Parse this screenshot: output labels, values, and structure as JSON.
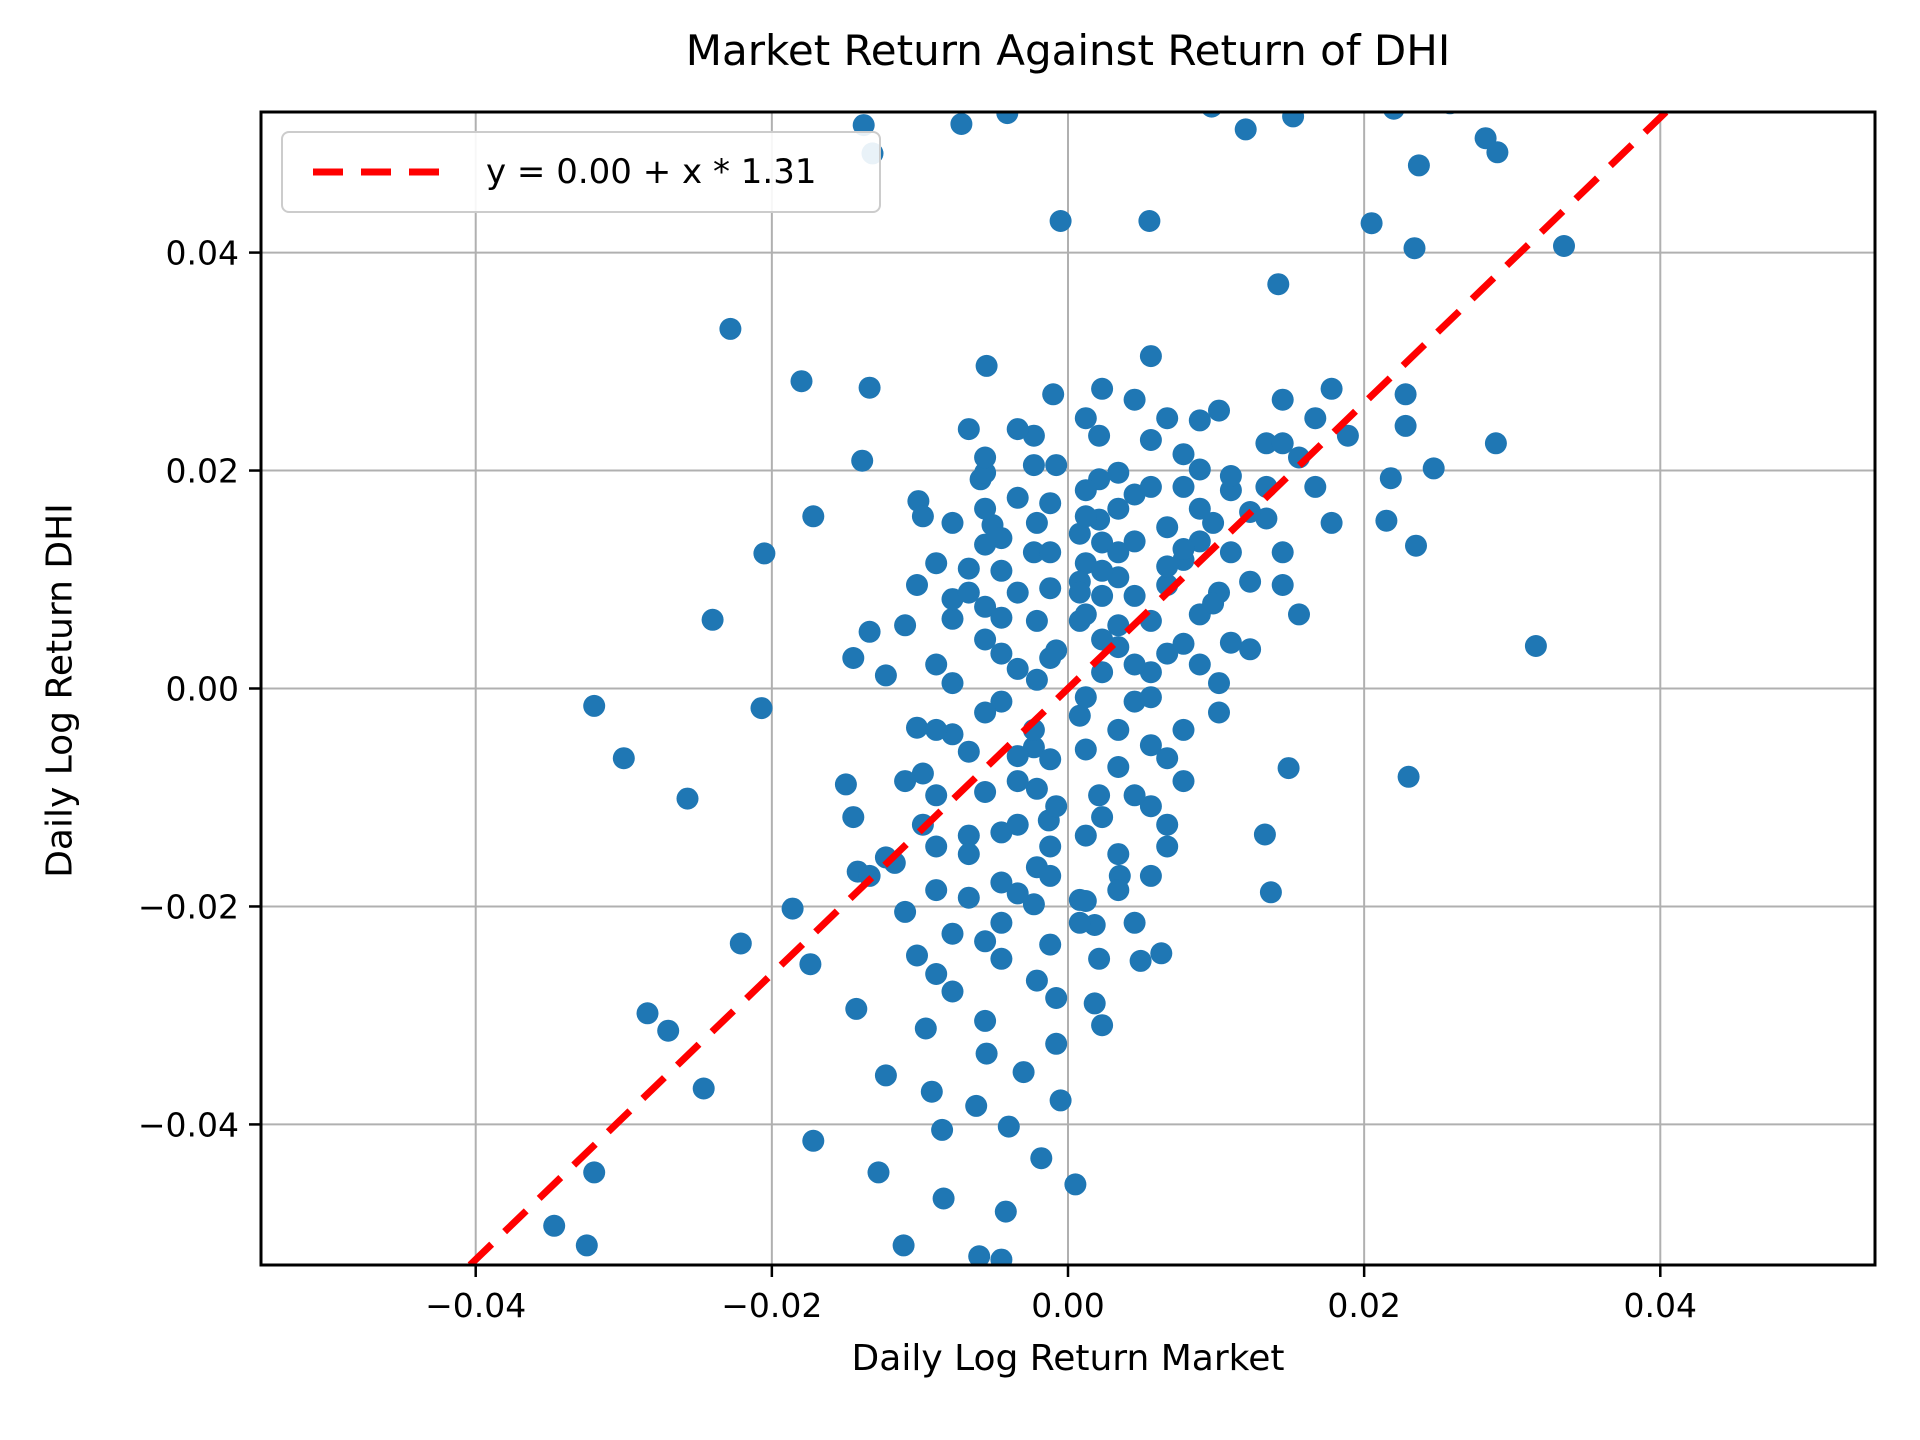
{
  "figure": {
    "background": "#ffffff"
  },
  "chart_data": {
    "type": "scatter",
    "title": "Market Return Against Return of DHI",
    "xlabel": "Daily Log Return Market",
    "ylabel": "Daily Log Return DHI",
    "xlim": [
      -0.0545,
      0.0545
    ],
    "ylim": [
      -0.0529,
      0.0529
    ],
    "xticks": [
      -0.04,
      -0.02,
      0.0,
      0.02,
      0.04
    ],
    "yticks": [
      0.04,
      0.02,
      0.0,
      -0.02,
      -0.04
    ],
    "grid": true,
    "grid_color": "#b0b0b0",
    "spine_color": "#000000",
    "marker": {
      "color": "#1f77b4",
      "radius_px": 11
    },
    "fit_line": {
      "slope": 1.31,
      "intercept": 0.0,
      "color": "#ff0000",
      "style": "dashed"
    },
    "legend": {
      "label": "y = 0.00 + x * 1.31",
      "position": "upper left"
    },
    "points": [
      [
        -0.018,
        0.0545
      ],
      [
        -0.0138,
        0.0517
      ],
      [
        -0.0132,
        0.0491
      ],
      [
        -0.0072,
        0.0518
      ],
      [
        -0.0041,
        0.0528
      ],
      [
        0.0042,
        0.0549
      ],
      [
        0.0065,
        0.0541
      ],
      [
        0.0097,
        0.0534
      ],
      [
        0.012,
        0.0513
      ],
      [
        0.022,
        0.0532
      ],
      [
        0.0258,
        0.0537
      ],
      [
        0.0282,
        0.0505
      ],
      [
        0.029,
        0.0492
      ],
      [
        0.0237,
        0.048
      ],
      [
        0.0055,
        0.0429
      ],
      [
        -0.0005,
        0.0429
      ],
      [
        0.0205,
        0.0427
      ],
      [
        0.0234,
        0.0404
      ],
      [
        0.0142,
        0.0371
      ],
      [
        -0.0228,
        0.033
      ],
      [
        0.0152,
        0.0525
      ],
      [
        0.0335,
        0.0406
      ],
      [
        -0.018,
        0.0282
      ],
      [
        -0.0134,
        0.0276
      ],
      [
        -0.0055,
        0.0296
      ],
      [
        -0.001,
        0.027
      ],
      [
        -0.0139,
        0.0209
      ],
      [
        -0.0059,
        0.0192
      ],
      [
        -0.0101,
        0.0172
      ],
      [
        -0.0172,
        0.0158
      ],
      [
        -0.0051,
        0.015
      ],
      [
        -0.024,
        0.0063
      ],
      [
        -0.0205,
        0.0124
      ],
      [
        -0.032,
        -0.0016
      ],
      [
        -0.03,
        -0.0064
      ],
      [
        -0.0257,
        -0.0101
      ],
      [
        -0.015,
        -0.0088
      ],
      [
        -0.0207,
        -0.0018
      ],
      [
        -0.0221,
        -0.0234
      ],
      [
        -0.0284,
        -0.0298
      ],
      [
        -0.027,
        -0.0314
      ],
      [
        -0.032,
        -0.0444
      ],
      [
        -0.0246,
        -0.0367
      ],
      [
        -0.0347,
        -0.0493
      ],
      [
        -0.0325,
        -0.0511
      ],
      [
        -0.0117,
        -0.016
      ],
      [
        -0.0142,
        -0.0168
      ],
      [
        -0.0186,
        -0.0202
      ],
      [
        -0.0174,
        -0.0253
      ],
      [
        -0.0096,
        -0.0312
      ],
      [
        -0.0143,
        -0.0294
      ],
      [
        -0.0008,
        -0.0326
      ],
      [
        -0.0055,
        -0.0335
      ],
      [
        -0.0111,
        -0.0511
      ],
      [
        -0.0084,
        -0.0468
      ],
      [
        -0.0128,
        -0.0444
      ],
      [
        -0.0172,
        -0.0415
      ],
      [
        -0.006,
        -0.0521
      ],
      [
        -0.0045,
        -0.0524
      ],
      [
        0.0005,
        -0.0455
      ],
      [
        -0.0018,
        -0.0431
      ],
      [
        -0.004,
        -0.0402
      ],
      [
        -0.0062,
        -0.0383
      ],
      [
        -0.0092,
        -0.037
      ],
      [
        -0.0123,
        -0.0355
      ],
      [
        -0.003,
        -0.0352
      ],
      [
        -0.0005,
        -0.0378
      ],
      [
        -0.0085,
        -0.0405
      ],
      [
        -0.0042,
        -0.048
      ],
      [
        0.0316,
        0.0039
      ],
      [
        0.023,
        -0.0081
      ],
      [
        0.0289,
        0.0225
      ],
      [
        0.0247,
        0.0202
      ],
      [
        0.0228,
        0.027
      ],
      [
        0.0228,
        0.0241
      ],
      [
        0.0218,
        0.0193
      ],
      [
        0.0235,
        0.0131
      ],
      [
        0.0215,
        0.0154
      ],
      [
        0.0149,
        -0.0073
      ],
      [
        0.0008,
        -0.0194
      ],
      [
        0.0018,
        -0.0217
      ],
      [
        0.0035,
        -0.0172
      ],
      [
        0.0049,
        -0.025
      ],
      [
        0.0018,
        -0.0289
      ],
      [
        0.0023,
        -0.0309
      ],
      [
        0.0137,
        -0.0187
      ],
      [
        0.0133,
        -0.0134
      ],
      [
        0.0063,
        -0.0243
      ],
      [
        -0.0021,
        0.0008
      ],
      [
        0.0034,
        0.0102
      ],
      [
        -0.0089,
        -0.0145
      ],
      [
        0.0012,
        -0.0056
      ],
      [
        0.0067,
        0.0148
      ],
      [
        -0.0045,
        0.0032
      ],
      [
        0.0102,
        0.0088
      ],
      [
        -0.0013,
        -0.0121
      ],
      [
        0.0056,
        0.0015
      ],
      [
        -0.0078,
        0.0064
      ],
      [
        0.0023,
        0.0134
      ],
      [
        -0.0102,
        -0.0036
      ],
      [
        0.0045,
        -0.0012
      ],
      [
        -0.0034,
        -0.0188
      ],
      [
        0.0089,
        0.0201
      ],
      [
        -0.0056,
        -0.0095
      ],
      [
        0.0008,
        0.0062
      ],
      [
        -0.0067,
        0.011
      ],
      [
        0.0134,
        0.0156
      ],
      [
        -0.0023,
        -0.0054
      ],
      [
        0.0078,
        0.0041
      ],
      [
        -0.0012,
        0.017
      ],
      [
        0.0056,
        0.0228
      ],
      [
        -0.0145,
        -0.0118
      ],
      [
        0.0021,
        -0.0098
      ],
      [
        0.011,
        0.0182
      ],
      [
        -0.0089,
        0.0022
      ],
      [
        0.0034,
        -0.0152
      ],
      [
        -0.0056,
        -0.0232
      ],
      [
        0.0145,
        0.0095
      ],
      [
        -0.0034,
        0.0088
      ],
      [
        0.0067,
        -0.0064
      ],
      [
        -0.011,
        -0.0205
      ],
      [
        0.0012,
        0.0115
      ],
      [
        0.0089,
        0.0246
      ],
      [
        -0.0078,
        -0.0042
      ],
      [
        0.0045,
        0.0178
      ],
      [
        -0.0021,
        -0.0164
      ],
      [
        0.0123,
        0.0036
      ],
      [
        -0.0045,
        0.0138
      ],
      [
        0.0008,
        -0.0025
      ],
      [
        -0.0134,
        0.0052
      ],
      [
        0.0078,
        0.0118
      ],
      [
        -0.0008,
        -0.0284
      ],
      [
        0.0034,
        0.0058
      ],
      [
        -0.0067,
        -0.0135
      ],
      [
        0.0156,
        0.0212
      ],
      [
        -0.0045,
        -0.0012
      ],
      [
        0.0021,
        0.0192
      ],
      [
        -0.0098,
        -0.0078
      ],
      [
        0.0056,
        -0.0108
      ],
      [
        -0.0023,
        0.0232
      ],
      [
        0.0102,
        0.0005
      ],
      [
        -0.0056,
        0.0075
      ],
      [
        0.0012,
        -0.0195
      ],
      [
        0.0145,
        0.0265
      ],
      [
        -0.0089,
        -0.0262
      ],
      [
        0.0067,
        0.0095
      ],
      [
        -0.0012,
        0.0028
      ],
      [
        0.0034,
        -0.0072
      ],
      [
        -0.0078,
        0.0152
      ],
      [
        0.0023,
        0.0085
      ],
      [
        -0.0045,
        -0.0215
      ],
      [
        0.011,
        0.0125
      ],
      [
        -0.0021,
        -0.0092
      ],
      [
        0.0056,
        0.0305
      ],
      [
        -0.0123,
        -0.0155
      ],
      [
        0.0008,
        0.0142
      ],
      [
        0.0078,
        -0.0038
      ],
      [
        -0.0034,
        -0.0125
      ],
      [
        0.0089,
        0.0068
      ],
      [
        -0.0056,
        0.0198
      ],
      [
        0.0021,
        -0.0248
      ],
      [
        -0.0102,
        0.0095
      ],
      [
        0.0045,
        0.0022
      ],
      [
        -0.0012,
        -0.0172
      ],
      [
        0.0134,
        0.0185
      ],
      [
        -0.0067,
        -0.0058
      ],
      [
        0.0012,
        0.0248
      ],
      [
        -0.0089,
        -0.0185
      ],
      [
        0.0034,
        0.0165
      ],
      [
        -0.0023,
        -0.0038
      ],
      [
        0.0067,
        -0.0125
      ],
      [
        -0.0145,
        0.0028
      ],
      [
        0.0008,
        0.0098
      ],
      [
        0.0098,
        0.0152
      ],
      [
        -0.0056,
        -0.0305
      ],
      [
        0.0023,
        0.0045
      ],
      [
        -0.0078,
        0.0082
      ],
      [
        0.0056,
        -0.0172
      ],
      [
        -0.0008,
        0.0205
      ],
      [
        0.0123,
        0.0098
      ],
      [
        -0.0034,
        0.0018
      ],
      [
        0.0045,
        -0.0215
      ],
      [
        -0.0067,
        0.0238
      ],
      [
        0.0012,
        -0.0008
      ],
      [
        -0.011,
        0.0058
      ],
      [
        0.0078,
        0.0215
      ],
      [
        -0.0021,
        -0.0268
      ],
      [
        0.0034,
        0.0125
      ],
      [
        0.0067,
        0.0032
      ],
      [
        -0.0045,
        0.0108
      ],
      [
        0.0156,
        0.0068
      ],
      [
        -0.0012,
        -0.0145
      ],
      [
        0.0023,
        0.0275
      ],
      [
        -0.0089,
        -0.0098
      ],
      [
        0.0045,
        0.0135
      ],
      [
        -0.0034,
        -0.0062
      ],
      [
        0.0102,
        -0.0022
      ],
      [
        -0.0056,
        0.0165
      ],
      [
        0.0012,
        0.0068
      ],
      [
        -0.0078,
        -0.0225
      ],
      [
        0.0089,
        0.0135
      ],
      [
        -0.0023,
        0.0125
      ],
      [
        0.0034,
        -0.0038
      ],
      [
        -0.0123,
        0.0012
      ],
      [
        0.0056,
        0.0185
      ],
      [
        -0.0045,
        -0.0178
      ],
      [
        0.0145,
        0.0125
      ],
      [
        -0.0008,
        0.0035
      ],
      [
        0.0078,
        -0.0085
      ],
      [
        -0.0056,
        0.0045
      ],
      [
        0.0021,
        0.0155
      ],
      [
        -0.0098,
        -0.0125
      ],
      [
        0.0067,
        0.0248
      ],
      [
        -0.0012,
        0.0092
      ],
      [
        0.011,
        0.0042
      ],
      [
        -0.0067,
        -0.0192
      ],
      [
        0.0023,
        -0.0118
      ],
      [
        -0.0034,
        0.0175
      ],
      [
        0.0045,
        0.0085
      ],
      [
        -0.0089,
        0.0115
      ],
      [
        0.0008,
        -0.0215
      ],
      [
        0.0134,
        0.0225
      ],
      [
        -0.0021,
        0.0152
      ],
      [
        0.0056,
        -0.0052
      ],
      [
        -0.011,
        -0.0085
      ],
      [
        0.0034,
        0.0198
      ],
      [
        -0.0045,
        -0.0248
      ],
      [
        0.0089,
        0.0165
      ],
      [
        -0.0012,
        -0.0065
      ],
      [
        0.0067,
        0.0112
      ],
      [
        -0.0134,
        -0.0172
      ],
      [
        0.0021,
        0.0232
      ],
      [
        -0.0056,
        -0.0022
      ],
      [
        0.0098,
        0.0078
      ],
      [
        -0.0023,
        -0.0198
      ],
      [
        0.0045,
        0.0265
      ],
      [
        -0.0078,
        0.0005
      ],
      [
        0.0012,
        -0.0135
      ],
      [
        0.011,
        0.0195
      ],
      [
        -0.0034,
        0.0238
      ],
      [
        0.0056,
        -0.0008
      ],
      [
        -0.0067,
        -0.0152
      ],
      [
        0.0023,
        0.0108
      ],
      [
        -0.0102,
        -0.0245
      ],
      [
        0.0078,
        0.0185
      ],
      [
        -0.0008,
        -0.0108
      ],
      [
        0.0145,
        0.0225
      ],
      [
        -0.0045,
        0.0065
      ],
      [
        0.0034,
        -0.0185
      ],
      [
        -0.0056,
        0.0132
      ],
      [
        0.0089,
        0.0022
      ],
      [
        -0.0021,
        0.0062
      ],
      [
        0.0012,
        0.0182
      ],
      [
        -0.0089,
        -0.0038
      ],
      [
        0.0067,
        -0.0145
      ],
      [
        0.0178,
        0.0275
      ],
      [
        -0.0034,
        -0.0085
      ],
      [
        0.0023,
        0.0015
      ],
      [
        -0.0067,
        0.0088
      ],
      [
        0.0045,
        -0.0098
      ],
      [
        -0.0012,
        0.0125
      ],
      [
        0.0102,
        0.0255
      ],
      [
        -0.0045,
        -0.0132
      ],
      [
        0.0167,
        0.0185
      ],
      [
        -0.0023,
        0.0205
      ],
      [
        0.0056,
        0.0062
      ],
      [
        -0.0078,
        -0.0278
      ],
      [
        0.0008,
        0.0088
      ],
      [
        0.0178,
        0.0152
      ],
      [
        -0.0098,
        0.0158
      ],
      [
        0.0034,
        0.0038
      ],
      [
        0.0189,
        0.0232
      ],
      [
        -0.0012,
        -0.0235
      ],
      [
        0.0078,
        0.0128
      ],
      [
        0.0167,
        0.0248
      ],
      [
        -0.0056,
        0.0212
      ],
      [
        0.0123,
        0.0162
      ],
      [
        0.0012,
        0.0158
      ]
    ]
  }
}
